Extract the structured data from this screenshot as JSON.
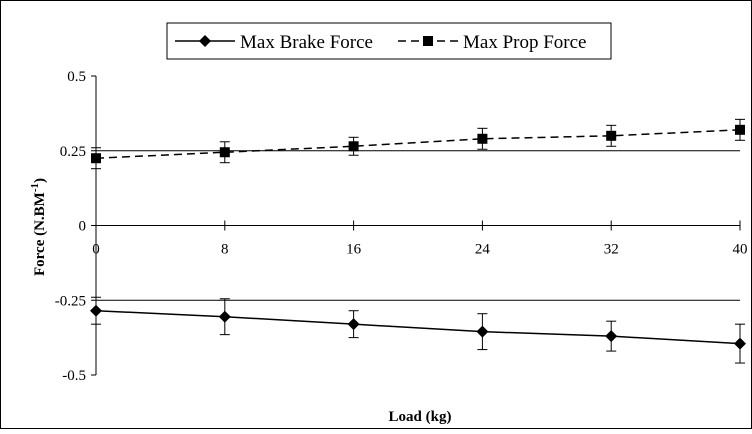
{
  "chart_data": {
    "type": "line",
    "title": "",
    "xlabel": "Load (kg)",
    "ylabel_main": "Force (N.BM",
    "ylabel_sup": "-1",
    "ylabel_close": ")",
    "x": [
      0,
      8,
      16,
      24,
      32,
      40
    ],
    "x_tick_labels": [
      "0",
      "8",
      "16",
      "24",
      "32",
      "40"
    ],
    "xlim": [
      0,
      40
    ],
    "ylim": [
      -0.5,
      0.5
    ],
    "y_ticks": [
      0.5,
      0.25,
      0,
      -0.25,
      -0.5
    ],
    "y_tick_labels": [
      "0.5",
      "0.25",
      "0",
      "-0.25",
      "-0.5"
    ],
    "gridlines_y": [
      0.25,
      -0.25
    ],
    "legend_position": "top-center",
    "series": [
      {
        "name": "Max Brake Force",
        "marker": "diamond",
        "line_style": "solid",
        "color": "#000000",
        "values": [
          -0.285,
          -0.305,
          -0.33,
          -0.355,
          -0.37,
          -0.395
        ],
        "error": [
          0.045,
          0.06,
          0.045,
          0.06,
          0.05,
          0.065
        ]
      },
      {
        "name": "Max Prop Force",
        "marker": "square",
        "line_style": "dashed",
        "color": "#000000",
        "values": [
          0.225,
          0.245,
          0.265,
          0.29,
          0.3,
          0.32
        ],
        "error": [
          0.035,
          0.035,
          0.03,
          0.035,
          0.035,
          0.035
        ]
      }
    ]
  }
}
